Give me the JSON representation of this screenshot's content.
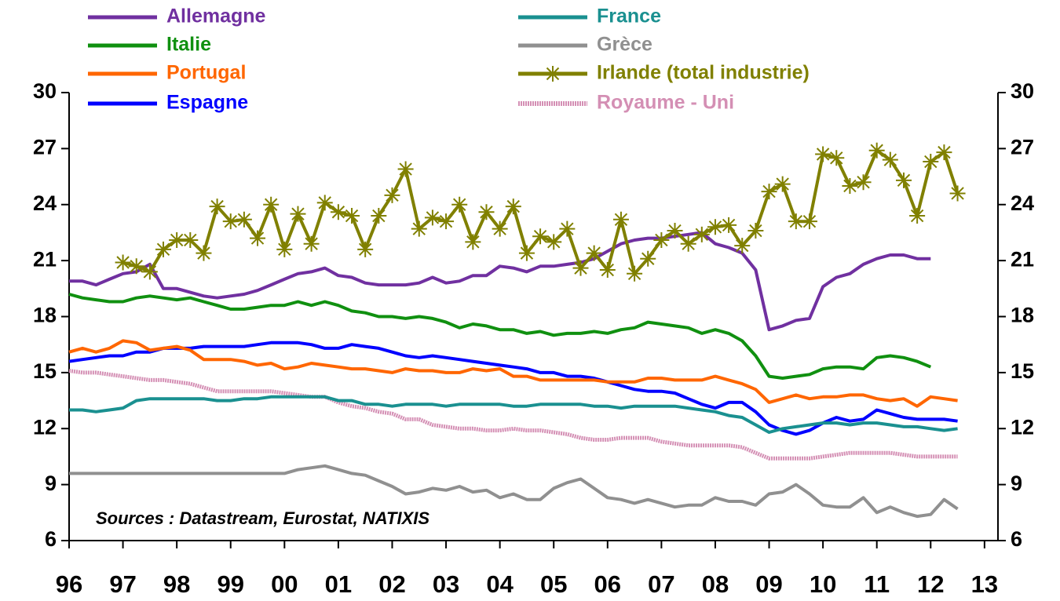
{
  "chart_data": {
    "type": "line",
    "annotation": "Sources : Datastream, Eurostat, NATIXIS",
    "x": [
      1996,
      1996.25,
      1996.5,
      1996.75,
      1997,
      1997.25,
      1997.5,
      1997.75,
      1998,
      1998.25,
      1998.5,
      1998.75,
      1999,
      1999.25,
      1999.5,
      1999.75,
      2000,
      2000.25,
      2000.5,
      2000.75,
      2001,
      2001.25,
      2001.5,
      2001.75,
      2002,
      2002.25,
      2002.5,
      2002.75,
      2003,
      2003.25,
      2003.5,
      2003.75,
      2004,
      2004.25,
      2004.5,
      2004.75,
      2005,
      2005.25,
      2005.5,
      2005.75,
      2006,
      2006.25,
      2006.5,
      2006.75,
      2007,
      2007.25,
      2007.5,
      2007.75,
      2008,
      2008.25,
      2008.5,
      2008.75,
      2009,
      2009.25,
      2009.5,
      2009.75,
      2010,
      2010.25,
      2010.5,
      2010.75,
      2011,
      2011.25,
      2011.5,
      2011.75,
      2012,
      2012.25,
      2012.5
    ],
    "xlim": [
      1996,
      2013.25
    ],
    "xticks": [
      {
        "value": 1996,
        "label": "96"
      },
      {
        "value": 1997,
        "label": "97"
      },
      {
        "value": 1998,
        "label": "98"
      },
      {
        "value": 1999,
        "label": "99"
      },
      {
        "value": 2000,
        "label": "00"
      },
      {
        "value": 2001,
        "label": "01"
      },
      {
        "value": 2002,
        "label": "02"
      },
      {
        "value": 2003,
        "label": "03"
      },
      {
        "value": 2004,
        "label": "04"
      },
      {
        "value": 2005,
        "label": "05"
      },
      {
        "value": 2006,
        "label": "06"
      },
      {
        "value": 2007,
        "label": "07"
      },
      {
        "value": 2008,
        "label": "08"
      },
      {
        "value": 2009,
        "label": "09"
      },
      {
        "value": 2010,
        "label": "10"
      },
      {
        "value": 2011,
        "label": "11"
      },
      {
        "value": 2012,
        "label": "12"
      },
      {
        "value": 2013,
        "label": "13"
      }
    ],
    "ylim": [
      6,
      30
    ],
    "yticks": [
      6,
      9,
      12,
      15,
      18,
      21,
      24,
      27,
      30
    ],
    "y2lim": [
      6,
      30
    ],
    "y2ticks": [
      6,
      9,
      12,
      15,
      18,
      21,
      24,
      27,
      30
    ],
    "series": [
      {
        "name": "Allemagne",
        "color": "#7030a0",
        "values": [
          19.9,
          19.9,
          19.7,
          20.0,
          20.3,
          20.4,
          20.8,
          19.5,
          19.5,
          19.3,
          19.1,
          19.0,
          19.1,
          19.2,
          19.4,
          19.7,
          20.0,
          20.3,
          20.4,
          20.6,
          20.2,
          20.1,
          19.8,
          19.7,
          19.7,
          19.7,
          19.8,
          20.1,
          19.8,
          19.9,
          20.2,
          20.2,
          20.7,
          20.6,
          20.4,
          20.7,
          20.7,
          20.8,
          20.9,
          21.1,
          21.5,
          21.9,
          22.1,
          22.2,
          22.2,
          22.3,
          22.4,
          22.5,
          21.9,
          21.7,
          21.4,
          20.5,
          17.3,
          17.5,
          17.8,
          17.9,
          19.6,
          20.1,
          20.3,
          20.8,
          21.1,
          21.3,
          21.3,
          21.1,
          21.1,
          null,
          null
        ]
      },
      {
        "name": "France",
        "color": "#1a9090",
        "values": [
          13.0,
          13.0,
          12.9,
          13.0,
          13.1,
          13.5,
          13.6,
          13.6,
          13.6,
          13.6,
          13.6,
          13.5,
          13.5,
          13.6,
          13.6,
          13.7,
          13.7,
          13.7,
          13.7,
          13.7,
          13.5,
          13.5,
          13.3,
          13.3,
          13.2,
          13.3,
          13.3,
          13.3,
          13.2,
          13.3,
          13.3,
          13.3,
          13.3,
          13.2,
          13.2,
          13.3,
          13.3,
          13.3,
          13.3,
          13.2,
          13.2,
          13.1,
          13.2,
          13.2,
          13.2,
          13.2,
          13.1,
          13.0,
          12.9,
          12.7,
          12.6,
          12.2,
          11.8,
          12.0,
          12.1,
          12.2,
          12.3,
          12.3,
          12.2,
          12.3,
          12.3,
          12.2,
          12.1,
          12.1,
          12.0,
          11.9,
          12.0
        ]
      },
      {
        "name": "Italie",
        "color": "#109010",
        "values": [
          19.2,
          19.0,
          18.9,
          18.8,
          18.8,
          19.0,
          19.1,
          19.0,
          18.9,
          19.0,
          18.8,
          18.6,
          18.4,
          18.4,
          18.5,
          18.6,
          18.6,
          18.8,
          18.6,
          18.8,
          18.6,
          18.3,
          18.2,
          18.0,
          18.0,
          17.9,
          18.0,
          17.9,
          17.7,
          17.4,
          17.6,
          17.5,
          17.3,
          17.3,
          17.1,
          17.2,
          17.0,
          17.1,
          17.1,
          17.2,
          17.1,
          17.3,
          17.4,
          17.7,
          17.6,
          17.5,
          17.4,
          17.1,
          17.3,
          17.1,
          16.7,
          15.9,
          14.8,
          14.7,
          14.8,
          14.9,
          15.2,
          15.3,
          15.3,
          15.2,
          15.8,
          15.9,
          15.8,
          15.6,
          15.3,
          null,
          null
        ]
      },
      {
        "name": "Grèce",
        "color": "#909090",
        "values": [
          9.6,
          9.6,
          9.6,
          9.6,
          9.6,
          9.6,
          9.6,
          9.6,
          9.6,
          9.6,
          9.6,
          9.6,
          9.6,
          9.6,
          9.6,
          9.6,
          9.6,
          9.8,
          9.9,
          10.0,
          9.8,
          9.6,
          9.5,
          9.2,
          8.9,
          8.5,
          8.6,
          8.8,
          8.7,
          8.9,
          8.6,
          8.7,
          8.3,
          8.5,
          8.2,
          8.2,
          8.8,
          9.1,
          9.3,
          8.8,
          8.3,
          8.2,
          8.0,
          8.2,
          8.0,
          7.8,
          7.9,
          7.9,
          8.3,
          8.1,
          8.1,
          7.9,
          8.5,
          8.6,
          9.0,
          8.5,
          7.9,
          7.8,
          7.8,
          8.3,
          7.5,
          7.8,
          7.5,
          7.3,
          7.4,
          8.2,
          7.7
        ]
      },
      {
        "name": "Portugal",
        "color": "#ff6600",
        "values": [
          16.1,
          16.3,
          16.1,
          16.3,
          16.7,
          16.6,
          16.2,
          16.3,
          16.4,
          16.2,
          15.7,
          15.7,
          15.7,
          15.6,
          15.4,
          15.5,
          15.2,
          15.3,
          15.5,
          15.4,
          15.3,
          15.2,
          15.2,
          15.1,
          15.0,
          15.2,
          15.1,
          15.1,
          15.0,
          15.0,
          15.2,
          15.1,
          15.2,
          14.8,
          14.8,
          14.6,
          14.6,
          14.6,
          14.6,
          14.6,
          14.5,
          14.5,
          14.5,
          14.7,
          14.7,
          14.6,
          14.6,
          14.6,
          14.8,
          14.6,
          14.4,
          14.1,
          13.4,
          13.6,
          13.8,
          13.6,
          13.7,
          13.7,
          13.8,
          13.8,
          13.6,
          13.5,
          13.6,
          13.2,
          13.7,
          13.6,
          13.5
        ]
      },
      {
        "name": "Irlande (total industrie)",
        "color": "#808000",
        "marker": "star",
        "values": [
          null,
          null,
          null,
          null,
          20.9,
          20.7,
          20.4,
          21.6,
          22.1,
          22.1,
          21.4,
          23.9,
          23.1,
          23.2,
          22.2,
          24.0,
          21.6,
          23.5,
          21.9,
          24.1,
          23.6,
          23.4,
          21.6,
          23.4,
          24.5,
          25.9,
          22.7,
          23.3,
          23.1,
          24.0,
          22.0,
          23.6,
          22.7,
          23.9,
          21.4,
          22.3,
          22.0,
          22.7,
          20.6,
          21.4,
          20.5,
          23.2,
          20.3,
          21.1,
          22.1,
          22.6,
          21.9,
          22.4,
          22.8,
          22.9,
          21.8,
          22.6,
          24.7,
          25.1,
          23.1,
          23.1,
          26.7,
          26.5,
          25.0,
          25.2,
          26.9,
          26.4,
          25.3,
          23.4,
          26.3,
          26.8,
          24.6
        ]
      },
      {
        "name": "Espagne",
        "color": "#0000ff",
        "values": [
          15.6,
          15.7,
          15.8,
          15.9,
          15.9,
          16.1,
          16.1,
          16.3,
          16.3,
          16.3,
          16.4,
          16.4,
          16.4,
          16.4,
          16.5,
          16.6,
          16.6,
          16.6,
          16.5,
          16.3,
          16.3,
          16.5,
          16.4,
          16.3,
          16.1,
          15.9,
          15.8,
          15.9,
          15.8,
          15.7,
          15.6,
          15.5,
          15.4,
          15.3,
          15.2,
          15.0,
          15.0,
          14.8,
          14.8,
          14.7,
          14.5,
          14.3,
          14.1,
          14.0,
          14.0,
          13.9,
          13.6,
          13.3,
          13.1,
          13.4,
          13.4,
          12.9,
          12.2,
          11.9,
          11.7,
          11.9,
          12.3,
          12.6,
          12.4,
          12.5,
          13.0,
          12.8,
          12.6,
          12.5,
          12.5,
          12.5,
          12.4
        ]
      },
      {
        "name": "Royaume - Uni",
        "color": "#d48fb4",
        "dashed": true,
        "values": [
          15.1,
          15.0,
          15.0,
          14.9,
          14.8,
          14.7,
          14.6,
          14.6,
          14.5,
          14.4,
          14.2,
          14.0,
          14.0,
          14.0,
          14.0,
          14.0,
          13.9,
          13.8,
          13.7,
          13.7,
          13.4,
          13.2,
          13.1,
          12.9,
          12.8,
          12.5,
          12.5,
          12.2,
          12.1,
          12.0,
          12.0,
          11.9,
          11.9,
          12.0,
          11.9,
          11.9,
          11.8,
          11.7,
          11.5,
          11.4,
          11.4,
          11.5,
          11.5,
          11.5,
          11.3,
          11.2,
          11.1,
          11.1,
          11.1,
          11.1,
          11.0,
          10.7,
          10.4,
          10.4,
          10.4,
          10.4,
          10.5,
          10.6,
          10.7,
          10.7,
          10.7,
          10.7,
          10.6,
          10.5,
          10.5,
          10.5,
          10.5
        ]
      }
    ]
  }
}
